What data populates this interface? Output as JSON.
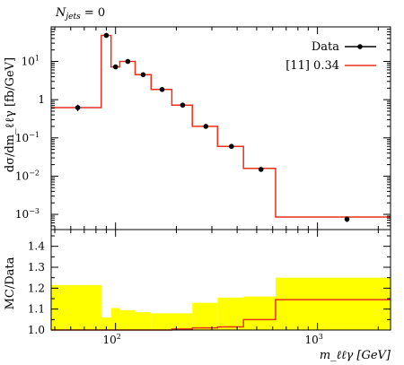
{
  "chart_data": {
    "type": "line",
    "corner_label": "N",
    "corner_label_sub": "jets",
    "corner_label_rest": " = 0",
    "legend": {
      "data_label": "Data",
      "mc_label": "[11] 0.34",
      "placement": "top-right"
    },
    "colors": {
      "data": "#000000",
      "mc": "#e8301c",
      "band": "#ffff00"
    },
    "main": {
      "ylabel": "dσ/dm_ℓℓγ [fb/GeV]",
      "ylog": true,
      "ylim": [
        0.0004,
        80
      ],
      "yticks": [
        {
          "v": 10,
          "t": "10",
          "sup": "1"
        },
        {
          "v": 1,
          "t": "1",
          "sup": ""
        },
        {
          "v": 0.1,
          "t": "10",
          "sup": "−1"
        },
        {
          "v": 0.01,
          "t": "10",
          "sup": "−2"
        },
        {
          "v": 0.001,
          "t": "10",
          "sup": "−3"
        }
      ]
    },
    "ratio": {
      "ylabel": "MC/Data",
      "ylim": [
        1.0,
        1.48
      ],
      "yticks": [
        "1.0",
        "1.1",
        "1.2",
        "1.3",
        "1.4"
      ]
    },
    "xaxis": {
      "label": "m_ℓℓγ [GeV]",
      "xlog": true,
      "xlim": [
        48,
        2300
      ],
      "xticks": [
        {
          "v": 100,
          "t": "10",
          "sup": "2"
        },
        {
          "v": 1000,
          "t": "10",
          "sup": "3"
        }
      ]
    },
    "bins": [
      {
        "lo": 48,
        "hi": 85,
        "data": 0.62,
        "mc": 0.62,
        "band": [
          1.0,
          1.215
        ],
        "ratio": 1.0
      },
      {
        "lo": 85,
        "hi": 95,
        "data": 48,
        "mc": 48,
        "band": [
          1.0,
          1.06
        ],
        "ratio": 1.0
      },
      {
        "lo": 95,
        "hi": 105,
        "data": 7.2,
        "mc": 7.2,
        "band": [
          1.0,
          1.105
        ],
        "ratio": 1.0
      },
      {
        "lo": 105,
        "hi": 125,
        "data": 10.0,
        "mc": 10.0,
        "band": [
          1.0,
          1.095
        ],
        "ratio": 1.0
      },
      {
        "lo": 125,
        "hi": 150,
        "data": 4.5,
        "mc": 4.5,
        "band": [
          1.0,
          1.085
        ],
        "ratio": 1.0
      },
      {
        "lo": 150,
        "hi": 190,
        "data": 1.85,
        "mc": 1.85,
        "band": [
          1.0,
          1.08
        ],
        "ratio": 1.0
      },
      {
        "lo": 190,
        "hi": 240,
        "data": 0.72,
        "mc": 0.72,
        "band": [
          1.0,
          1.08
        ],
        "ratio": 1.005
      },
      {
        "lo": 240,
        "hi": 320,
        "data": 0.2,
        "mc": 0.2,
        "band": [
          1.0,
          1.13
        ],
        "ratio": 1.01
      },
      {
        "lo": 320,
        "hi": 430,
        "data": 0.06,
        "mc": 0.06,
        "band": [
          1.0,
          1.155
        ],
        "ratio": 1.015
      },
      {
        "lo": 430,
        "hi": 620,
        "data": 0.015,
        "mc": 0.016,
        "band": [
          1.0,
          1.16
        ],
        "ratio": 1.05
      },
      {
        "lo": 620,
        "hi": 2300,
        "data": 0.00075,
        "mc": 0.00085,
        "band": [
          1.0,
          1.25
        ],
        "ratio": 1.145
      }
    ],
    "data_points": [
      {
        "x": 65,
        "y": 0.62,
        "err": [
          0.12,
          0.12
        ]
      },
      {
        "x": 90,
        "y": 48,
        "err": [
          0.0,
          0.0
        ]
      },
      {
        "x": 100,
        "y": 7.2,
        "err": [
          0.0,
          0.0
        ]
      },
      {
        "x": 115,
        "y": 10.0,
        "err": [
          0.0,
          0.0
        ]
      },
      {
        "x": 137,
        "y": 4.5,
        "err": [
          0.0,
          0.0
        ]
      },
      {
        "x": 170,
        "y": 1.85,
        "err": [
          0.0,
          0.0
        ]
      },
      {
        "x": 215,
        "y": 0.72,
        "err": [
          0.0,
          0.0
        ]
      },
      {
        "x": 280,
        "y": 0.2,
        "err": [
          0.0,
          0.0
        ]
      },
      {
        "x": 375,
        "y": 0.06,
        "err": [
          0.0,
          0.0
        ]
      },
      {
        "x": 525,
        "y": 0.015,
        "err": [
          0.0,
          0.0
        ]
      },
      {
        "x": 1400,
        "y": 0.00075,
        "err": [
          0.00012,
          0.00012
        ]
      }
    ]
  }
}
